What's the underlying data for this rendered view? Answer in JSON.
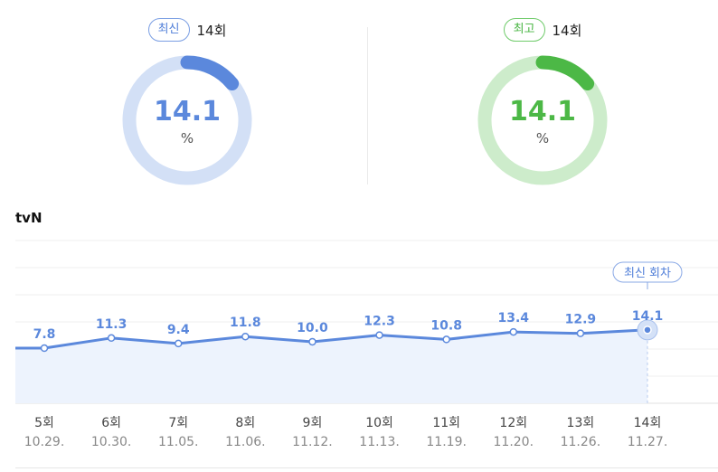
{
  "latest": {
    "badge": "최신",
    "episode": "14회",
    "value": "14.1",
    "unit": "%",
    "fraction": 0.141,
    "color": "#5b88dc",
    "track_color": "#d3e0f6"
  },
  "best": {
    "badge": "최고",
    "episode": "14회",
    "value": "14.1",
    "unit": "%",
    "fraction": 0.141,
    "color": "#4cb846",
    "track_color": "#cdeccb"
  },
  "chart_data": {
    "type": "area",
    "title": "tvN",
    "categories": [
      "5회",
      "6회",
      "7회",
      "8회",
      "9회",
      "10회",
      "11회",
      "12회",
      "13회",
      "14회"
    ],
    "dates": [
      "10.29.",
      "10.30.",
      "11.05.",
      "11.06.",
      "11.12.",
      "11.13.",
      "11.19.",
      "11.20.",
      "11.26.",
      "11.27."
    ],
    "series": [
      {
        "values": [
          7.8,
          11.3,
          9.4,
          11.8,
          10.0,
          12.3,
          10.8,
          13.4,
          12.9,
          14.1
        ]
      }
    ],
    "labels": [
      "7.8",
      "11.3",
      "9.4",
      "11.8",
      "10.0",
      "12.3",
      "10.8",
      "13.4",
      "12.9",
      "14.1"
    ],
    "latest_tag": "최신 회차",
    "line_color": "#5b88dc",
    "fill_color": "#edf3fd",
    "grid": true
  }
}
